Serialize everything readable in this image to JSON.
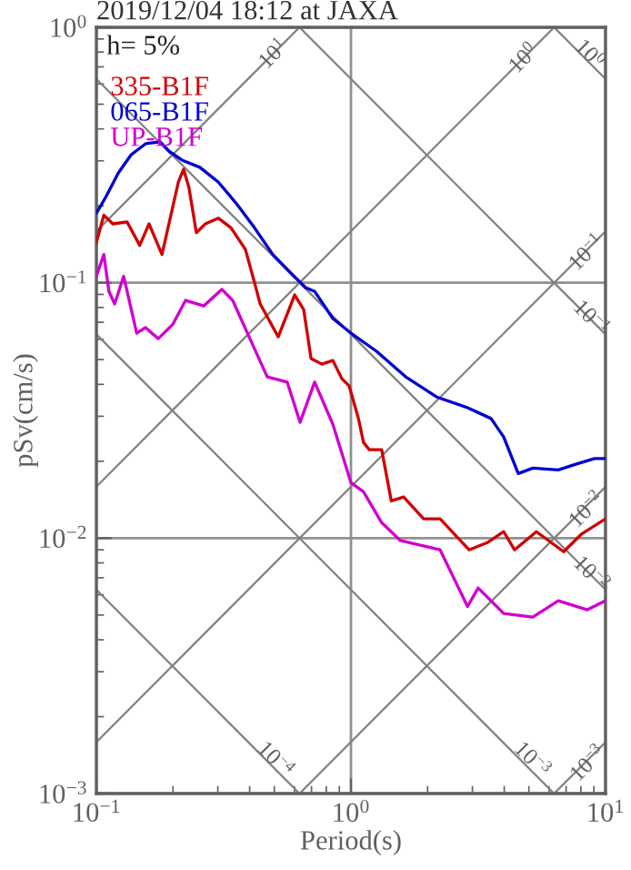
{
  "chart_data": {
    "type": "line",
    "title": "2019/12/04 18:12 at JAXA",
    "xlabel": "Period(s)",
    "ylabel": "pSv(cm/s)",
    "log": "xy",
    "grid": true,
    "legend": "top left",
    "xlim": [
      0.1,
      10
    ],
    "ylim": [
      0.001,
      1
    ],
    "xticks": [
      {
        "value": 0.1,
        "label": "10$^{−1}$"
      },
      {
        "value": 1,
        "label": "10$^{0}$"
      },
      {
        "value": 10,
        "label": "10$^{1}$"
      }
    ],
    "yticks": [
      {
        "value": 0.001,
        "label": "10$^{−3}$"
      },
      {
        "value": 0.01,
        "label": "10$^{−2}$"
      },
      {
        "value": 0.1,
        "label": "10$^{−1}$"
      },
      {
        "value": 1,
        "label": "10$^{0}$"
      }
    ],
    "annotations": [
      "h= 5%",
      {
        "text": "10$^{1}$",
        "x": 0.5,
        "y": 0.78
      },
      {
        "text": "10$^{0}$",
        "x": 4.8,
        "y": 0.75
      },
      {
        "text": "10$^{0}$",
        "x": 8.6,
        "y": 0.78
      },
      {
        "text": "10$^{−1}$",
        "x": 8.5,
        "y": 0.13
      },
      {
        "text": "10$^{−1}$",
        "x": 8.7,
        "y": 0.0722
      },
      {
        "text": "10$^{−2}$",
        "x": 8.5,
        "y": 0.0128
      },
      {
        "text": "10$^{−2}$",
        "x": 8.7,
        "y": 0.0072
      },
      {
        "text": "10$^{−4}$",
        "x": 0.5,
        "y": 0.00135
      },
      {
        "text": "10$^{−3}$",
        "x": 5.1,
        "y": 0.00135
      },
      {
        "text": "10$^{−3}$",
        "x": 8.6,
        "y": 0.0013
      }
    ],
    "series": [
      {
        "name": "335-B1F",
        "color": "#d00000",
        "x": [
          0.1,
          0.107,
          0.116,
          0.132,
          0.148,
          0.161,
          0.181,
          0.21,
          0.22,
          0.231,
          0.247,
          0.268,
          0.301,
          0.338,
          0.385,
          0.418,
          0.44,
          0.518,
          0.601,
          0.652,
          0.697,
          0.769,
          0.849,
          0.921,
          0.984,
          1.07,
          1.12,
          1.18,
          1.32,
          1.44,
          1.61,
          1.93,
          2.24,
          2.91,
          3.43,
          3.98,
          4.39,
          5.35,
          6.85,
          8.07,
          10
        ],
        "values": [
          0.144,
          0.184,
          0.17,
          0.173,
          0.14,
          0.17,
          0.129,
          0.248,
          0.278,
          0.236,
          0.157,
          0.17,
          0.179,
          0.164,
          0.135,
          0.1,
          0.0826,
          0.0614,
          0.0896,
          0.0786,
          0.0505,
          0.048,
          0.0496,
          0.0421,
          0.0394,
          0.0294,
          0.0237,
          0.0222,
          0.0222,
          0.014,
          0.0145,
          0.0119,
          0.0119,
          0.009,
          0.0096,
          0.0106,
          0.009,
          0.0106,
          0.00885,
          0.0104,
          0.0119
        ]
      },
      {
        "name": "065-B1F",
        "color": "#0000d0",
        "x": [
          0.1,
          0.109,
          0.122,
          0.137,
          0.156,
          0.178,
          0.193,
          0.217,
          0.255,
          0.301,
          0.355,
          0.418,
          0.493,
          0.581,
          0.663,
          0.72,
          0.849,
          1,
          1.26,
          1.64,
          2.17,
          2.87,
          3.55,
          3.98,
          4.54,
          5.18,
          6.52,
          7.69,
          9.06,
          10
        ],
        "values": [
          0.187,
          0.217,
          0.269,
          0.317,
          0.35,
          0.356,
          0.327,
          0.302,
          0.283,
          0.248,
          0.204,
          0.164,
          0.129,
          0.109,
          0.0957,
          0.0925,
          0.0724,
          0.0635,
          0.0539,
          0.0428,
          0.0357,
          0.0324,
          0.0294,
          0.0249,
          0.0179,
          0.0188,
          0.0185,
          0.0195,
          0.0205,
          0.0205
        ]
      },
      {
        "name": "UP-B1F",
        "color": "#d000d0",
        "x": [
          0.1,
          0.107,
          0.112,
          0.118,
          0.128,
          0.144,
          0.156,
          0.175,
          0.2,
          0.224,
          0.264,
          0.311,
          0.343,
          0.398,
          0.469,
          0.562,
          0.631,
          0.72,
          0.849,
          1,
          1.12,
          1.32,
          1.56,
          2.24,
          2.87,
          3.16,
          3.98,
          5.18,
          6.52,
          8.48,
          10
        ],
        "values": [
          0.106,
          0.129,
          0.0926,
          0.0826,
          0.106,
          0.0635,
          0.0667,
          0.0604,
          0.0689,
          0.0853,
          0.0811,
          0.0942,
          0.0853,
          0.0614,
          0.0428,
          0.0408,
          0.0284,
          0.0408,
          0.0279,
          0.0165,
          0.0152,
          0.0115,
          0.0098,
          0.009,
          0.0054,
          0.00638,
          0.00507,
          0.00491,
          0.00569,
          0.00524,
          0.00569
        ]
      },
      {
        "color": "#808080",
        "x": [
          0.1,
          0.628
        ],
        "values": [
          0.159,
          1
        ]
      },
      {
        "color": "#808080",
        "x": [
          0.1,
          6.28
        ],
        "values": [
          0.0159,
          1
        ]
      },
      {
        "color": "#808080",
        "x": [
          0.1,
          10
        ],
        "values": [
          0.00159,
          0.159
        ]
      },
      {
        "color": "#808080",
        "x": [
          0.628,
          10
        ],
        "values": [
          0.001,
          0.0159
        ]
      },
      {
        "color": "#808080",
        "x": [
          6.28,
          10
        ],
        "values": [
          0.001,
          0.00159
        ]
      },
      {
        "color": "#808080",
        "x": [
          0.1,
          0.628
        ],
        "values": [
          0.00628,
          0.001
        ]
      },
      {
        "color": "#808080",
        "x": [
          0.1,
          6.28
        ],
        "values": [
          0.0628,
          0.001
        ]
      },
      {
        "color": "#808080",
        "x": [
          0.1,
          10
        ],
        "values": [
          0.628,
          0.00628
        ]
      },
      {
        "color": "#808080",
        "x": [
          0.628,
          10
        ],
        "values": [
          1,
          0.0628
        ]
      },
      {
        "color": "#808080",
        "x": [
          6.28,
          10
        ],
        "values": [
          1,
          0.628
        ]
      }
    ]
  }
}
